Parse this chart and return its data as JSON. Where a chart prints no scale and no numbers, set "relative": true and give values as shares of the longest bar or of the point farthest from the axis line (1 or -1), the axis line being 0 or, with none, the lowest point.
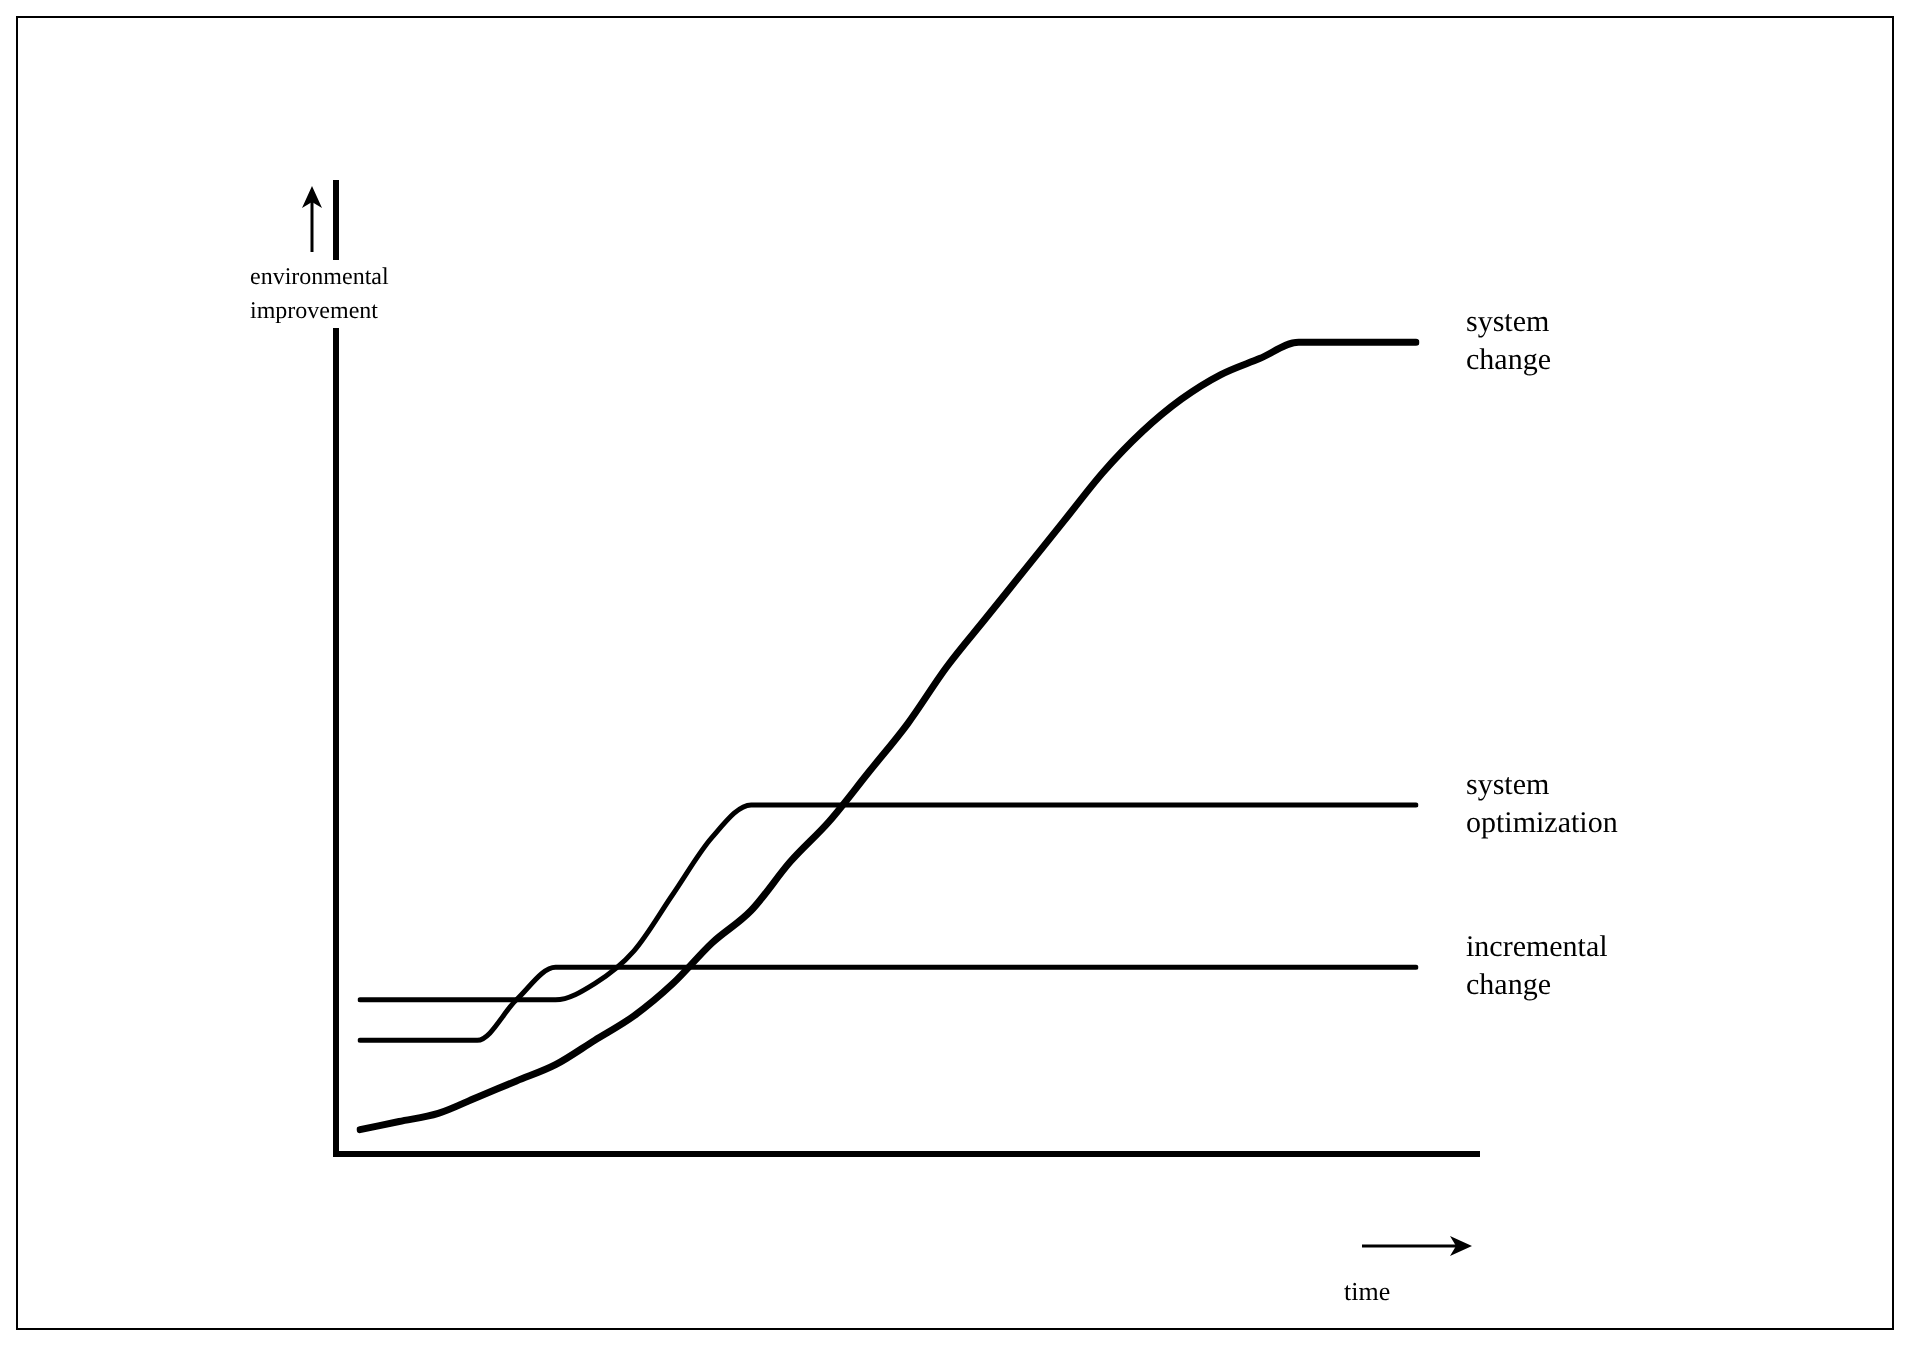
{
  "chart_data": {
    "type": "line",
    "relative": true,
    "xlabel": "time",
    "ylabel": "environmental improvement",
    "legend": false,
    "marker": "none",
    "categories": [
      null,
      null,
      null,
      null,
      null,
      null,
      null,
      null,
      null,
      null,
      null,
      null,
      null,
      null,
      null,
      null,
      null,
      null,
      null,
      null,
      null,
      null,
      null,
      null,
      null,
      null,
      null,
      null
    ],
    "series": [
      {
        "name": "system change",
        "color": "#000000",
        "values": [
          0.03,
          0.04,
          0.05,
          0.07,
          0.09,
          0.11,
          0.14,
          0.17,
          0.21,
          0.26,
          0.3,
          0.36,
          0.41,
          0.47,
          0.53,
          0.6,
          0.66,
          0.72,
          0.78,
          0.84,
          0.89,
          0.93,
          0.96,
          0.98,
          1,
          1,
          1,
          1
        ]
      },
      {
        "name": "system optimization",
        "color": "#000000",
        "values": [
          0.19,
          0.19,
          0.19,
          0.19,
          0.19,
          0.19,
          0.21,
          0.25,
          0.32,
          0.39,
          0.43,
          0.43,
          0.43,
          0.43,
          0.43,
          0.43,
          0.43,
          0.43,
          0.43,
          0.43,
          0.43,
          0.43,
          0.43,
          0.43,
          0.43,
          0.43,
          0.43,
          0.43
        ]
      },
      {
        "name": "incremental change",
        "color": "#000000",
        "values": [
          0.14,
          0.14,
          0.14,
          0.14,
          0.19,
          0.23,
          0.23,
          0.23,
          0.23,
          0.23,
          0.23,
          0.23,
          0.23,
          0.23,
          0.23,
          0.23,
          0.23,
          0.23,
          0.23,
          0.23,
          0.23,
          0.23,
          0.23,
          0.23,
          0.23,
          0.23,
          0.23,
          0.23
        ]
      }
    ]
  }
}
